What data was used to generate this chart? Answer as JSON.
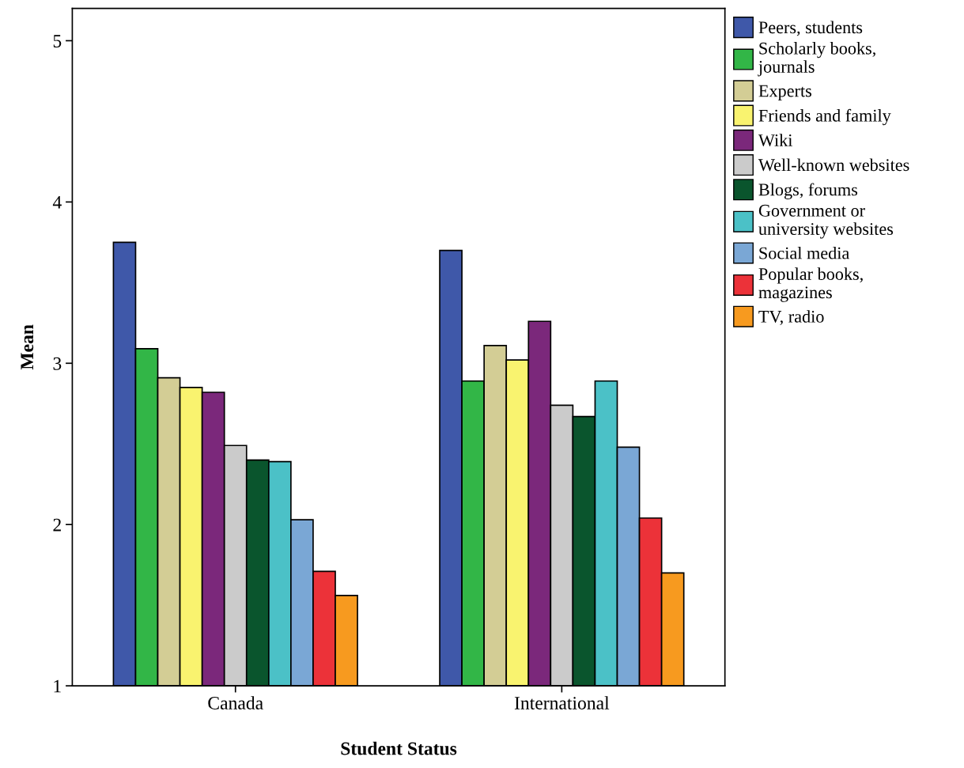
{
  "chart_data": {
    "type": "bar",
    "xlabel": "Student Status",
    "ylabel": "Mean",
    "categories": [
      "Canada",
      "International"
    ],
    "ylim": [
      1,
      5.2
    ],
    "yticks": [
      1,
      2,
      3,
      4,
      5
    ],
    "grid": false,
    "legend": "top right",
    "series": [
      {
        "name": "Peers, students",
        "color": "#3f58a9",
        "values": [
          3.75,
          3.7
        ]
      },
      {
        "name": "Scholarly books,\njournals",
        "color": "#32b647",
        "values": [
          3.09,
          2.89
        ]
      },
      {
        "name": "Experts",
        "color": "#d3cd95",
        "values": [
          2.91,
          3.11
        ]
      },
      {
        "name": "Friends and family",
        "color": "#f9f36f",
        "values": [
          2.85,
          3.02
        ]
      },
      {
        "name": "Wiki",
        "color": "#7b287b",
        "values": [
          2.82,
          3.26
        ]
      },
      {
        "name": "Well-known websites",
        "color": "#cbcbcb",
        "values": [
          2.49,
          2.74
        ]
      },
      {
        "name": "Blogs, forums",
        "color": "#0a552d",
        "values": [
          2.4,
          2.67
        ]
      },
      {
        "name": "Government or\nuniversity websites",
        "color": "#4bc1c7",
        "values": [
          2.39,
          2.89
        ]
      },
      {
        "name": "Social media",
        "color": "#7aa7d5",
        "values": [
          2.03,
          2.48
        ]
      },
      {
        "name": "Popular books,\nmagazines",
        "color": "#ec3239",
        "values": [
          1.71,
          2.04
        ]
      },
      {
        "name": "TV, radio",
        "color": "#f79a1f",
        "values": [
          1.56,
          1.7
        ]
      }
    ]
  }
}
